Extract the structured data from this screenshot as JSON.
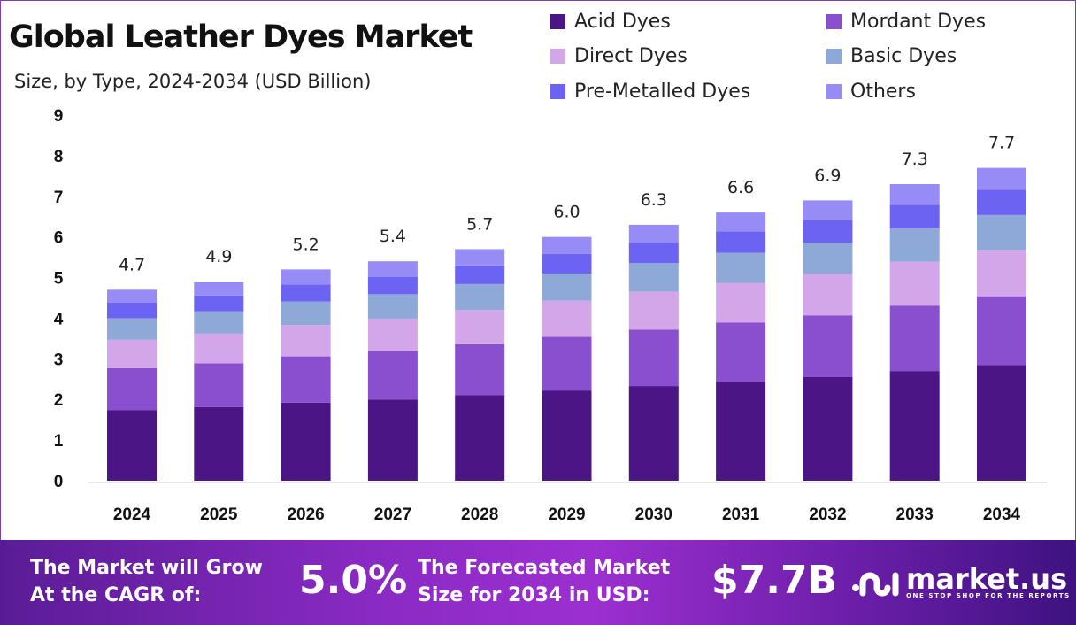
{
  "chart_data": {
    "type": "bar",
    "stacked": true,
    "title": "Global Leather Dyes Market",
    "subtitle": "Size, by Type, 2024-2034 (USD Billion)",
    "categories": [
      "2024",
      "2025",
      "2026",
      "2027",
      "2028",
      "2029",
      "2030",
      "2031",
      "2032",
      "2033",
      "2034"
    ],
    "series": [
      {
        "name": "Acid Dyes",
        "color": "#4b1585",
        "values": [
          1.74,
          1.81,
          1.92,
          2.0,
          2.11,
          2.22,
          2.33,
          2.44,
          2.55,
          2.7,
          2.85
        ]
      },
      {
        "name": "Mordant Dyes",
        "color": "#8a4fcf",
        "values": [
          1.03,
          1.08,
          1.14,
          1.19,
          1.25,
          1.32,
          1.39,
          1.45,
          1.52,
          1.61,
          1.69
        ]
      },
      {
        "name": "Direct Dyes",
        "color": "#d3a6ea",
        "values": [
          0.7,
          0.73,
          0.77,
          0.8,
          0.84,
          0.89,
          0.93,
          0.98,
          1.02,
          1.08,
          1.14
        ]
      },
      {
        "name": "Basic Dyes",
        "color": "#8ea8d8",
        "values": [
          0.53,
          0.55,
          0.58,
          0.6,
          0.64,
          0.67,
          0.71,
          0.74,
          0.77,
          0.82,
          0.86
        ]
      },
      {
        "name": "Pre-Metalled Dyes",
        "color": "#6d63f2",
        "values": [
          0.38,
          0.39,
          0.42,
          0.43,
          0.46,
          0.48,
          0.5,
          0.53,
          0.55,
          0.58,
          0.62
        ]
      },
      {
        "name": "Others",
        "color": "#978cf5",
        "values": [
          0.32,
          0.34,
          0.37,
          0.38,
          0.4,
          0.42,
          0.44,
          0.46,
          0.49,
          0.51,
          0.54
        ]
      }
    ],
    "totals": [
      "4.7",
      "4.9",
      "5.2",
      "5.4",
      "5.7",
      "6.0",
      "6.3",
      "6.6",
      "6.9",
      "7.3",
      "7.7"
    ],
    "yticks": [
      "0",
      "1",
      "2",
      "3",
      "4",
      "5",
      "6",
      "7",
      "8",
      "9"
    ],
    "ylim": [
      0,
      9
    ],
    "grid": false,
    "legend": "top-right"
  },
  "footer": {
    "cagr_label_1": "The Market will Grow",
    "cagr_label_2": "At the CAGR of:",
    "cagr_value": "5.0%",
    "forecast_label_1": "The Forecasted Market",
    "forecast_label_2": "Size for 2034 in USD:",
    "forecast_value": "$7.7B",
    "logo_name": "market.us",
    "logo_tagline": "ONE STOP SHOP FOR THE REPORTS"
  }
}
